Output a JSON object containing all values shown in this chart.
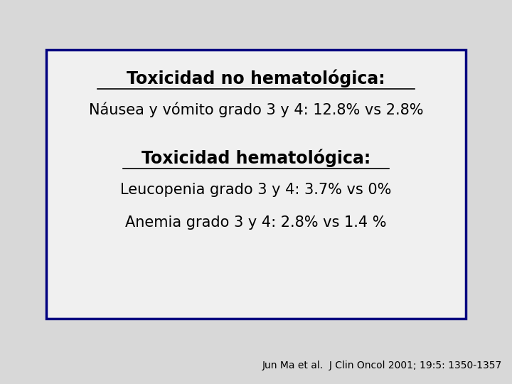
{
  "title1": "Toxicidad no hematológica:",
  "line1": "Náusea y vómito grado 3 y 4: 12.8% vs 2.8%",
  "title2": "Toxicidad hematológica:",
  "line2": "Leucopenia grado 3 y 4: 3.7% vs 0%",
  "line3": "Anemia grado 3 y 4: 2.8% vs 1.4 %",
  "footnote": "Jun Ma et al.  J Clin Oncol 2001; 19:5: 1350-1357",
  "bg_color": "#d8d8d8",
  "box_bg": "#f0f0f0",
  "box_border": "#000080",
  "text_color": "#000000",
  "title_fontsize": 17,
  "body_fontsize": 15,
  "footnote_fontsize": 10
}
